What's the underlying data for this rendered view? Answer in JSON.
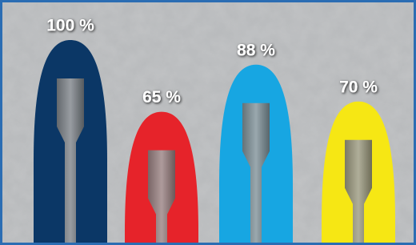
{
  "chart_data": {
    "type": "bar",
    "values": [
      100,
      65,
      88,
      70
    ],
    "value_labels": [
      "100 %",
      "65 %",
      "88 %",
      "70 %"
    ],
    "colors": [
      "#0b3766",
      "#e6232a",
      "#17a6e2",
      "#f6e714"
    ]
  }
}
